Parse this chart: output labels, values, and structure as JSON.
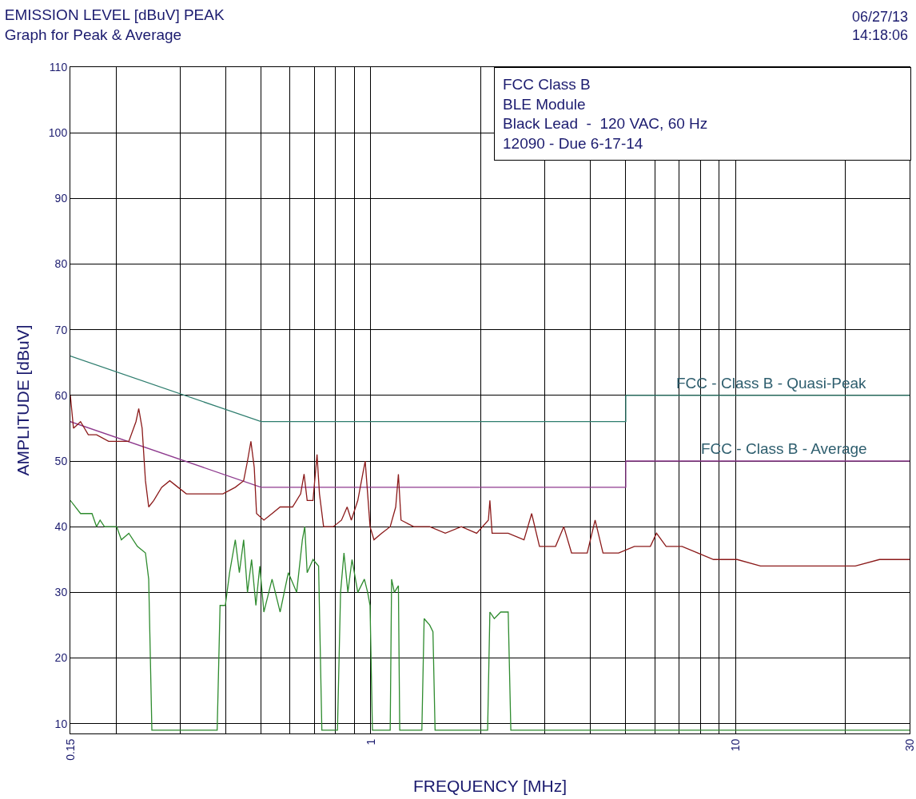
{
  "chart_data": {
    "type": "line",
    "title": "EMISSION LEVEL [dBuV] PEAK",
    "subtitle": "Graph for Peak & Average",
    "xlabel": "FREQUENCY [MHz]",
    "ylabel": "AMPLITUDE [dBuV]",
    "log": "x",
    "grid": true,
    "marker": "none",
    "line_style": "solid",
    "xlim": [
      0.15,
      30
    ],
    "ylim": [
      8.5,
      110
    ],
    "xticks": [
      0.15,
      {
        "value": 0.2,
        "label": null
      },
      {
        "value": 0.3,
        "label": null
      },
      {
        "value": 0.4,
        "label": null
      },
      {
        "value": 0.5,
        "label": null
      },
      {
        "value": 0.6,
        "label": null
      },
      {
        "value": 0.7,
        "label": null
      },
      {
        "value": 0.8,
        "label": null
      },
      {
        "value": 0.9,
        "label": null
      },
      1,
      {
        "value": 2,
        "label": null
      },
      {
        "value": 3,
        "label": null
      },
      {
        "value": 4,
        "label": null
      },
      {
        "value": 5,
        "label": null
      },
      {
        "value": 6,
        "label": null
      },
      {
        "value": 7,
        "label": null
      },
      {
        "value": 8,
        "label": null
      },
      {
        "value": 9,
        "label": null
      },
      10,
      {
        "value": 20,
        "label": null
      },
      30
    ],
    "yticks": [
      10,
      20,
      30,
      40,
      50,
      60,
      70,
      80,
      90,
      100,
      110
    ],
    "series": [
      {
        "color": "#2e7d6e",
        "x": [
          0.15,
          0.5,
          5,
          5,
          30
        ],
        "values": [
          66,
          56,
          56,
          60,
          60
        ]
      },
      {
        "color": "#8e3a8e",
        "x": [
          0.15,
          0.5,
          5,
          5,
          30
        ],
        "values": [
          56,
          46,
          46,
          50,
          50
        ]
      },
      {
        "color": "#8b1a1a",
        "x": [
          0.15,
          0.153,
          0.16,
          0.168,
          0.177,
          0.191,
          0.207,
          0.217,
          0.227,
          0.231,
          0.236,
          0.241,
          0.246,
          0.254,
          0.267,
          0.281,
          0.296,
          0.312,
          0.337,
          0.364,
          0.393,
          0.425,
          0.448,
          0.459,
          0.469,
          0.479,
          0.486,
          0.509,
          0.536,
          0.564,
          0.61,
          0.642,
          0.656,
          0.669,
          0.694,
          0.712,
          0.723,
          0.742,
          0.789,
          0.831,
          0.861,
          0.884,
          0.921,
          0.95,
          0.965,
          0.98,
          0.995,
          1.02,
          1.07,
          1.13,
          1.17,
          1.19,
          1.21,
          1.31,
          1.45,
          1.6,
          1.77,
          1.95,
          2.1,
          2.12,
          2.15,
          2.38,
          2.63,
          2.76,
          2.9,
          3.21,
          3.38,
          3.55,
          3.92,
          4.12,
          4.33,
          4.78,
          5.28,
          5.84,
          6.07,
          6.45,
          7.13,
          7.88,
          8.7,
          10.1,
          11.7,
          13.6,
          15.8,
          18.4,
          21.3,
          24.8,
          27.4,
          30
        ],
        "values": [
          60,
          55,
          56,
          54,
          54,
          53,
          53,
          53,
          56,
          58,
          55,
          47,
          43,
          44,
          46,
          47,
          46,
          45,
          45,
          45,
          45,
          46,
          47,
          50,
          53,
          49,
          42,
          41,
          42,
          43,
          43,
          45,
          48,
          44,
          44,
          51,
          45,
          40,
          40,
          41,
          43,
          41,
          44,
          48,
          50,
          45,
          40,
          38,
          39,
          40,
          43,
          48,
          41,
          40,
          40,
          39,
          40,
          39,
          41,
          44,
          39,
          39,
          38,
          42,
          37,
          37,
          40,
          36,
          36,
          41,
          36,
          36,
          37,
          37,
          39,
          37,
          37,
          36,
          35,
          35,
          34,
          34,
          34,
          34,
          34,
          35,
          35,
          35
        ]
      },
      {
        "color": "#2e8b2e",
        "x": [
          0.15,
          0.16,
          0.172,
          0.177,
          0.181,
          0.186,
          0.201,
          0.207,
          0.217,
          0.229,
          0.241,
          0.246,
          0.251,
          0.379,
          0.386,
          0.399,
          0.41,
          0.425,
          0.436,
          0.448,
          0.459,
          0.471,
          0.484,
          0.496,
          0.509,
          0.536,
          0.564,
          0.594,
          0.626,
          0.649,
          0.659,
          0.669,
          0.694,
          0.719,
          0.734,
          0.81,
          0.826,
          0.844,
          0.865,
          0.888,
          0.921,
          0.96,
          0.98,
          0.995,
          1.01,
          1.13,
          1.14,
          1.16,
          1.19,
          1.2,
          1.38,
          1.4,
          1.45,
          1.48,
          1.5,
          2.09,
          2.12,
          2.18,
          2.27,
          2.38,
          2.42,
          30
        ],
        "values": [
          44,
          42,
          42,
          40,
          41,
          40,
          40,
          38,
          39,
          37,
          36,
          32,
          9,
          9,
          28,
          28,
          33,
          38,
          33,
          38,
          30,
          35,
          28,
          34,
          27,
          32,
          27,
          33,
          30,
          38,
          40,
          33,
          35,
          34,
          9,
          9,
          30,
          36,
          30,
          35,
          30,
          32,
          30,
          28,
          9,
          9,
          32,
          30,
          31,
          9,
          9,
          26,
          25,
          24,
          9,
          9,
          27,
          26,
          27,
          27,
          9,
          9
        ]
      }
    ],
    "annotations": [
      "06/27/13\n14:18:06",
      "FCC Class B\nBLE Module\nBlack Lead  -  120 VAC, 60 Hz\n12090 - Due 6-17-14",
      {
        "text": "FCC - Class B - Quasi-Peak",
        "x": 12.5,
        "y": 60
      },
      {
        "text": "FCC - Class B - Average",
        "x": 13.6,
        "y": 50
      }
    ]
  }
}
